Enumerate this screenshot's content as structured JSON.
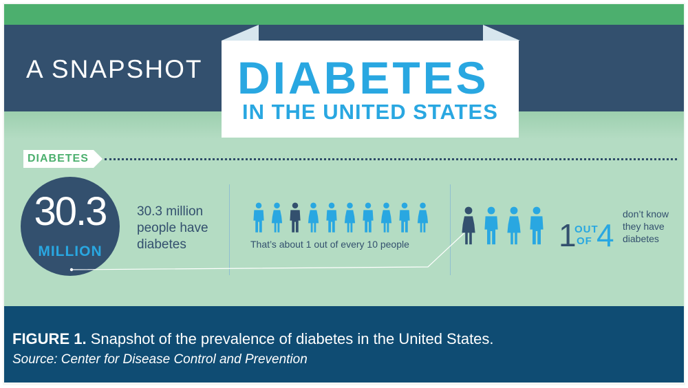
{
  "header": {
    "kicker": "A SNAPSHOT",
    "title": "DIABETES",
    "subtitle": "IN THE UNITED STATES"
  },
  "section": {
    "tag": "DIABETES"
  },
  "stat_main": {
    "number": "30.3",
    "unit": "MILLION",
    "description": "30.3 million people have diabetes"
  },
  "stat_ratio_10": {
    "caption": "That’s about 1 out of every 10 people",
    "people": [
      {
        "type": "man",
        "highlight": false
      },
      {
        "type": "woman",
        "highlight": false
      },
      {
        "type": "man",
        "highlight": true
      },
      {
        "type": "woman",
        "highlight": false
      },
      {
        "type": "man",
        "highlight": false
      },
      {
        "type": "woman",
        "highlight": false
      },
      {
        "type": "man",
        "highlight": false
      },
      {
        "type": "woman",
        "highlight": false
      },
      {
        "type": "man",
        "highlight": false
      },
      {
        "type": "woman",
        "highlight": false
      }
    ]
  },
  "stat_ratio_4": {
    "one": "1",
    "out": "OUT",
    "of": "OF",
    "four": "4",
    "description": "don’t know they have diabetes",
    "people": [
      {
        "type": "woman",
        "highlight": true
      },
      {
        "type": "man",
        "highlight": false
      },
      {
        "type": "woman",
        "highlight": false
      },
      {
        "type": "man",
        "highlight": false
      }
    ]
  },
  "caption": {
    "label": "FIGURE 1.",
    "text": " Snapshot of the prevalence of diabetes in the United States.",
    "source": "Source: Center for Disease Control and Prevention"
  },
  "colors": {
    "navy": "#33506e",
    "blue": "#29a7e1",
    "green": "#4caf6e",
    "mint": "#b4dcc3",
    "footer": "#0f4c73"
  }
}
